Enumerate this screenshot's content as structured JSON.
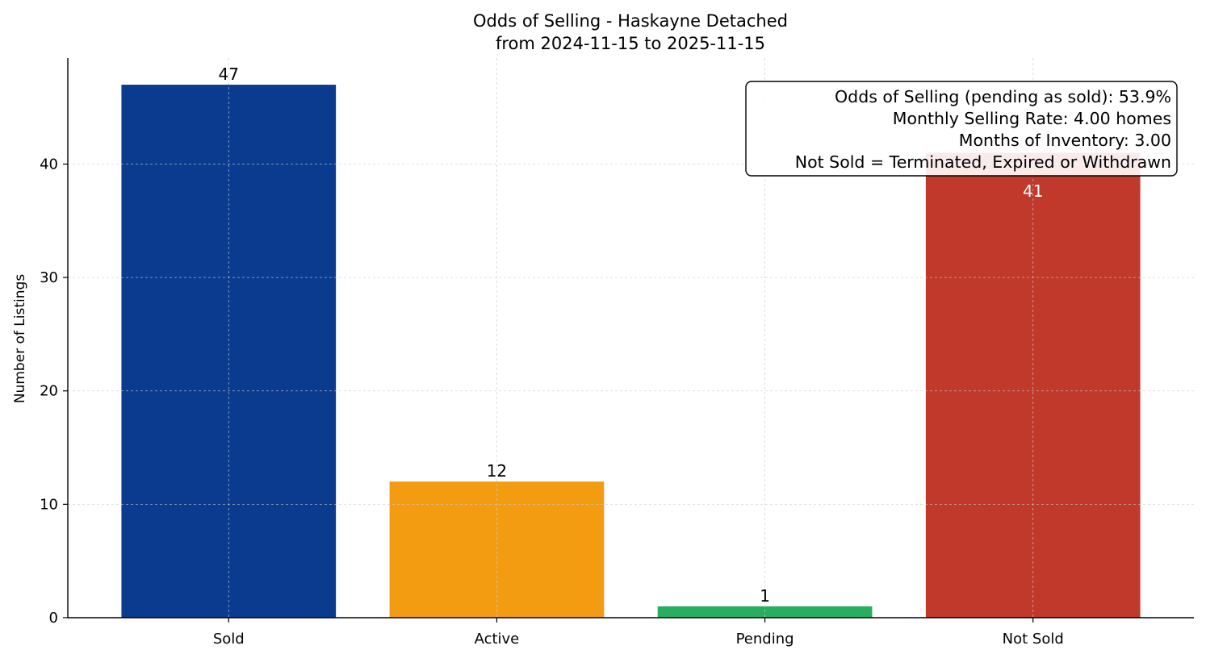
{
  "chart_data": {
    "type": "bar",
    "title": "Odds of Selling - Haskayne Detached",
    "subtitle": "from 2024-11-15 to 2025-11-15",
    "xlabel": "",
    "ylabel": "Number of Listings",
    "categories": [
      "Sold",
      "Active",
      "Pending",
      "Not Sold"
    ],
    "values": [
      47,
      12,
      1,
      41
    ],
    "data_labels": [
      "47",
      "12",
      "1",
      "41"
    ],
    "colors": [
      "#0b3b8f",
      "#f39c12",
      "#27ae60",
      "#c0392b"
    ],
    "ylim": [
      0,
      49.35
    ],
    "yticks": [
      0,
      10,
      20,
      30,
      40
    ],
    "grid": true,
    "annotation_box": {
      "position": "top-right",
      "lines": [
        "Odds of Selling (pending as sold): 53.9%",
        "Monthly Selling Rate: 4.00 homes",
        "Months of Inventory: 3.00",
        "Not Sold = Terminated, Expired or Withdrawn"
      ]
    }
  }
}
